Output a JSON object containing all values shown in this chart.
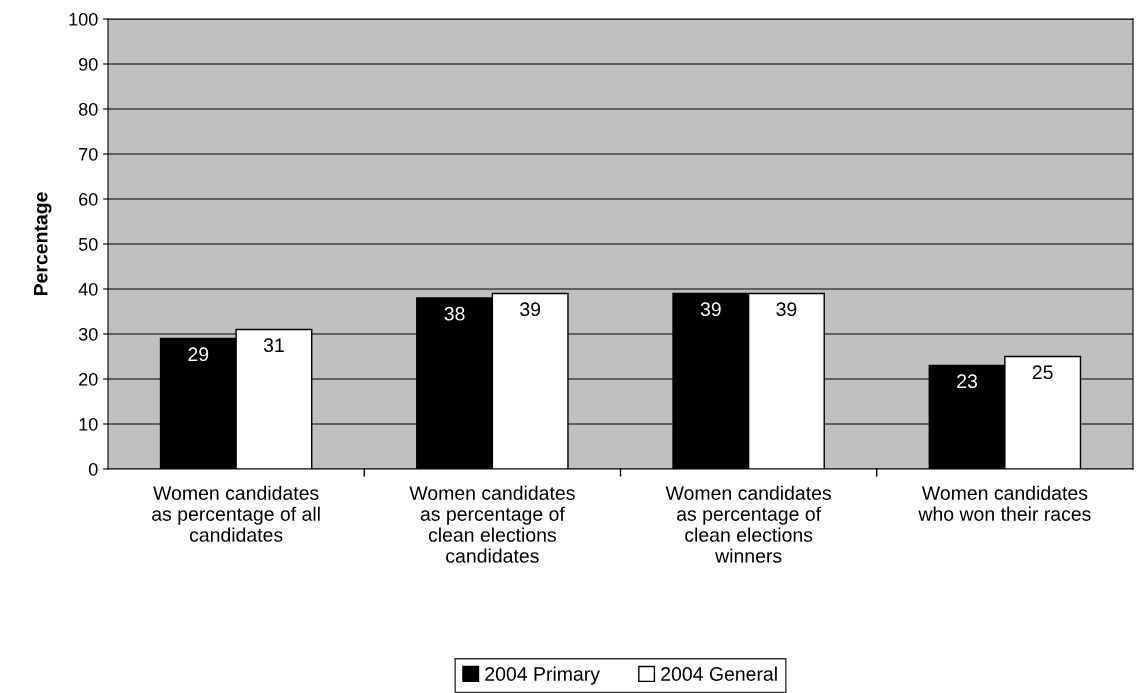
{
  "chart_data": {
    "type": "bar",
    "ylabel": "Percentage",
    "categories": [
      "Women candidates\nas percentage of all\ncandidates",
      "Women candidates\nas percentage of\nclean elections\ncandidates",
      "Women candidates\nas percentage of\nclean elections\nwinners",
      "Women candidates\nwho won their races"
    ],
    "series": [
      {
        "name": "2004 Primary",
        "color": "#000000",
        "values": [
          29,
          38,
          39,
          23
        ]
      },
      {
        "name": "2004 General",
        "color": "#ffffff",
        "values": [
          31,
          39,
          39,
          25
        ]
      }
    ],
    "ylim": [
      0,
      100
    ],
    "yticks": [
      0,
      10,
      20,
      30,
      40,
      50,
      60,
      70,
      80,
      90,
      100
    ],
    "grid": "y",
    "legend": "bottom",
    "data_labels": true
  }
}
